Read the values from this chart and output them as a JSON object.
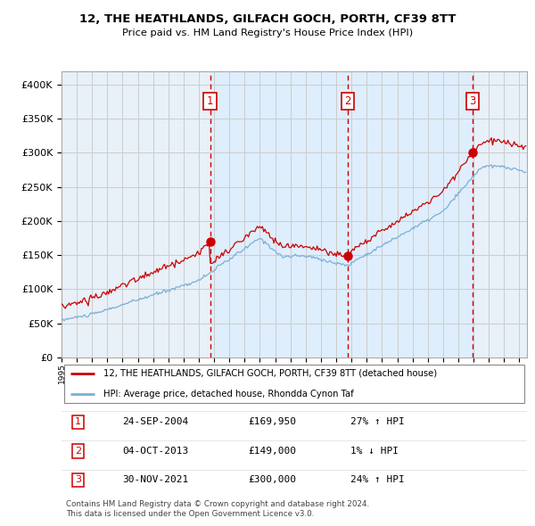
{
  "title": "12, THE HEATHLANDS, GILFACH GOCH, PORTH, CF39 8TT",
  "subtitle": "Price paid vs. HM Land Registry's House Price Index (HPI)",
  "legend_line1": "12, THE HEATHLANDS, GILFACH GOCH, PORTH, CF39 8TT (detached house)",
  "legend_line2": "HPI: Average price, detached house, Rhondda Cynon Taf",
  "footer1": "Contains HM Land Registry data © Crown copyright and database right 2024.",
  "footer2": "This data is licensed under the Open Government Licence v3.0.",
  "transactions": [
    {
      "num": 1,
      "date": "24-SEP-2004",
      "price": 169950,
      "pct": "27%",
      "dir": "↑"
    },
    {
      "num": 2,
      "date": "04-OCT-2013",
      "price": 149000,
      "pct": "1%",
      "dir": "↓"
    },
    {
      "num": 3,
      "date": "30-NOV-2021",
      "price": 300000,
      "pct": "24%",
      "dir": "↑"
    }
  ],
  "transaction_dates_decimal": [
    2004.73,
    2013.76,
    2021.92
  ],
  "transaction_prices": [
    169950,
    149000,
    300000
  ],
  "red_line_color": "#cc0000",
  "blue_line_color": "#7bafd4",
  "marker_color": "#cc0000",
  "vline_color": "#cc0000",
  "shade_color": "#ddeeff",
  "grid_color": "#cccccc",
  "background_color": "#ffffff",
  "plot_bg_color": "#e8f0f8",
  "ylim": [
    0,
    420000
  ],
  "xlim_start": 1995.0,
  "xlim_end": 2025.5
}
